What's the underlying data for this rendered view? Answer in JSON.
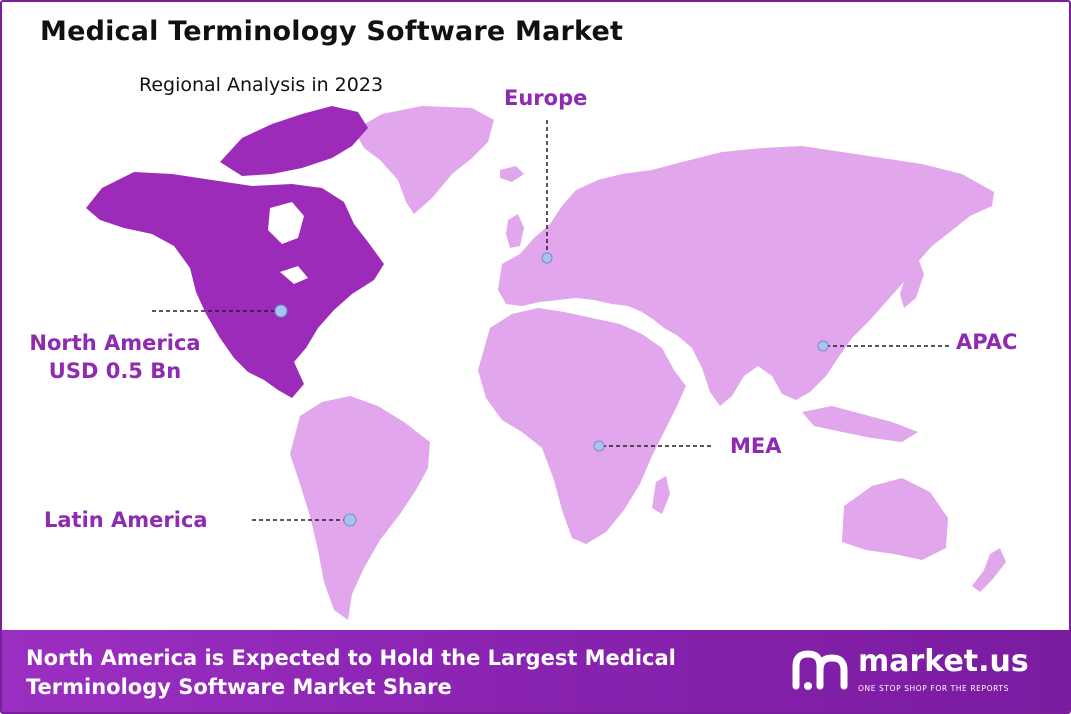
{
  "header": {
    "title": "Medical Terminology Software Market",
    "subtitle": "Regional Analysis in 2023"
  },
  "map": {
    "highlight_color": "#9b2bb8",
    "land_color": "#e2a6ec",
    "marker_color": "#a8c4ee",
    "regions": [
      {
        "id": "north-america",
        "name": "North America",
        "value": "USD 0.5 Bn",
        "highlighted": true
      },
      {
        "id": "europe",
        "name": "Europe"
      },
      {
        "id": "apac",
        "name": "APAC"
      },
      {
        "id": "mea",
        "name": "MEA"
      },
      {
        "id": "latin-america",
        "name": "Latin America"
      }
    ]
  },
  "footer": {
    "text_line1": "North America is Expected to Hold the Largest Medical",
    "text_line2": "Terminology Software Market Share",
    "brand_name": "market.us",
    "brand_tagline": "ONE STOP SHOP FOR THE REPORTS",
    "brand_icon": "market-us-logo-icon"
  }
}
